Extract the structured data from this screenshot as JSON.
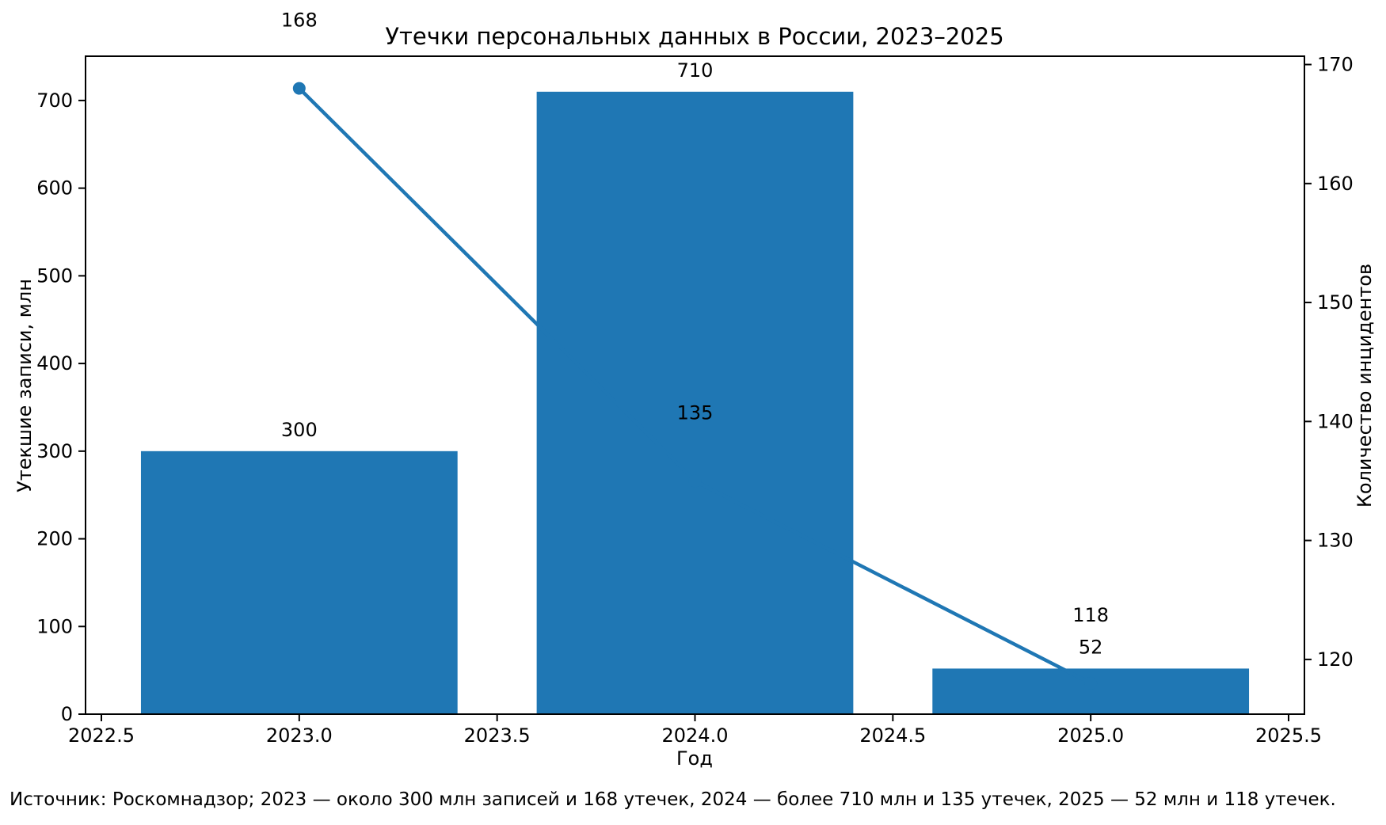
{
  "footer": {
    "text": "Источник: Роскомнадзор; 2023 — около 300 млн записей и 168 утечек, 2024 — более 710 млн и 135 утечек, 2025 — 52 млн и 118 утечек."
  },
  "chart_data": {
    "type": "bar+line",
    "title": "Утечки персональных данных в России, 2023–2025",
    "xlabel": "Год",
    "ylabel_left": "Утекшие записи, млн",
    "ylabel_right": "Количество инцидентов",
    "x": [
      2023,
      2024,
      2025
    ],
    "series": [
      {
        "name": "Утекшие записи, млн",
        "type": "bar",
        "axis": "left",
        "values": [
          300,
          710,
          52
        ],
        "labels": [
          "300",
          "710",
          "52"
        ],
        "color": "#1f77b4"
      },
      {
        "name": "Количество инцидентов",
        "type": "line",
        "axis": "right",
        "values": [
          168,
          135,
          118
        ],
        "labels": [
          "168",
          "135",
          "118"
        ],
        "color": "#1f77b4"
      }
    ],
    "bar_width": 0.8,
    "xlim": [
      2022.46,
      2025.54
    ],
    "ylim_left": [
      0,
      750.5
    ],
    "ylim_right": [
      115.4,
      170.7
    ],
    "xticks": [
      2022.5,
      2023.0,
      2023.5,
      2024.0,
      2024.5,
      2025.0,
      2025.5
    ],
    "xtick_labels": [
      "2022.5",
      "2023.0",
      "2023.5",
      "2024.0",
      "2024.5",
      "2025.0",
      "2025.5"
    ],
    "yticks_left": [
      0,
      100,
      200,
      300,
      400,
      500,
      600,
      700
    ],
    "ytick_labels_left": [
      "0",
      "100",
      "200",
      "300",
      "400",
      "500",
      "600",
      "700"
    ],
    "yticks_right": [
      120,
      130,
      140,
      150,
      160,
      170
    ],
    "ytick_labels_right": [
      "120",
      "130",
      "140",
      "150",
      "160",
      "170"
    ],
    "grid": false,
    "legend": "none",
    "text_color": "#000000",
    "spine_color": "#000000"
  }
}
